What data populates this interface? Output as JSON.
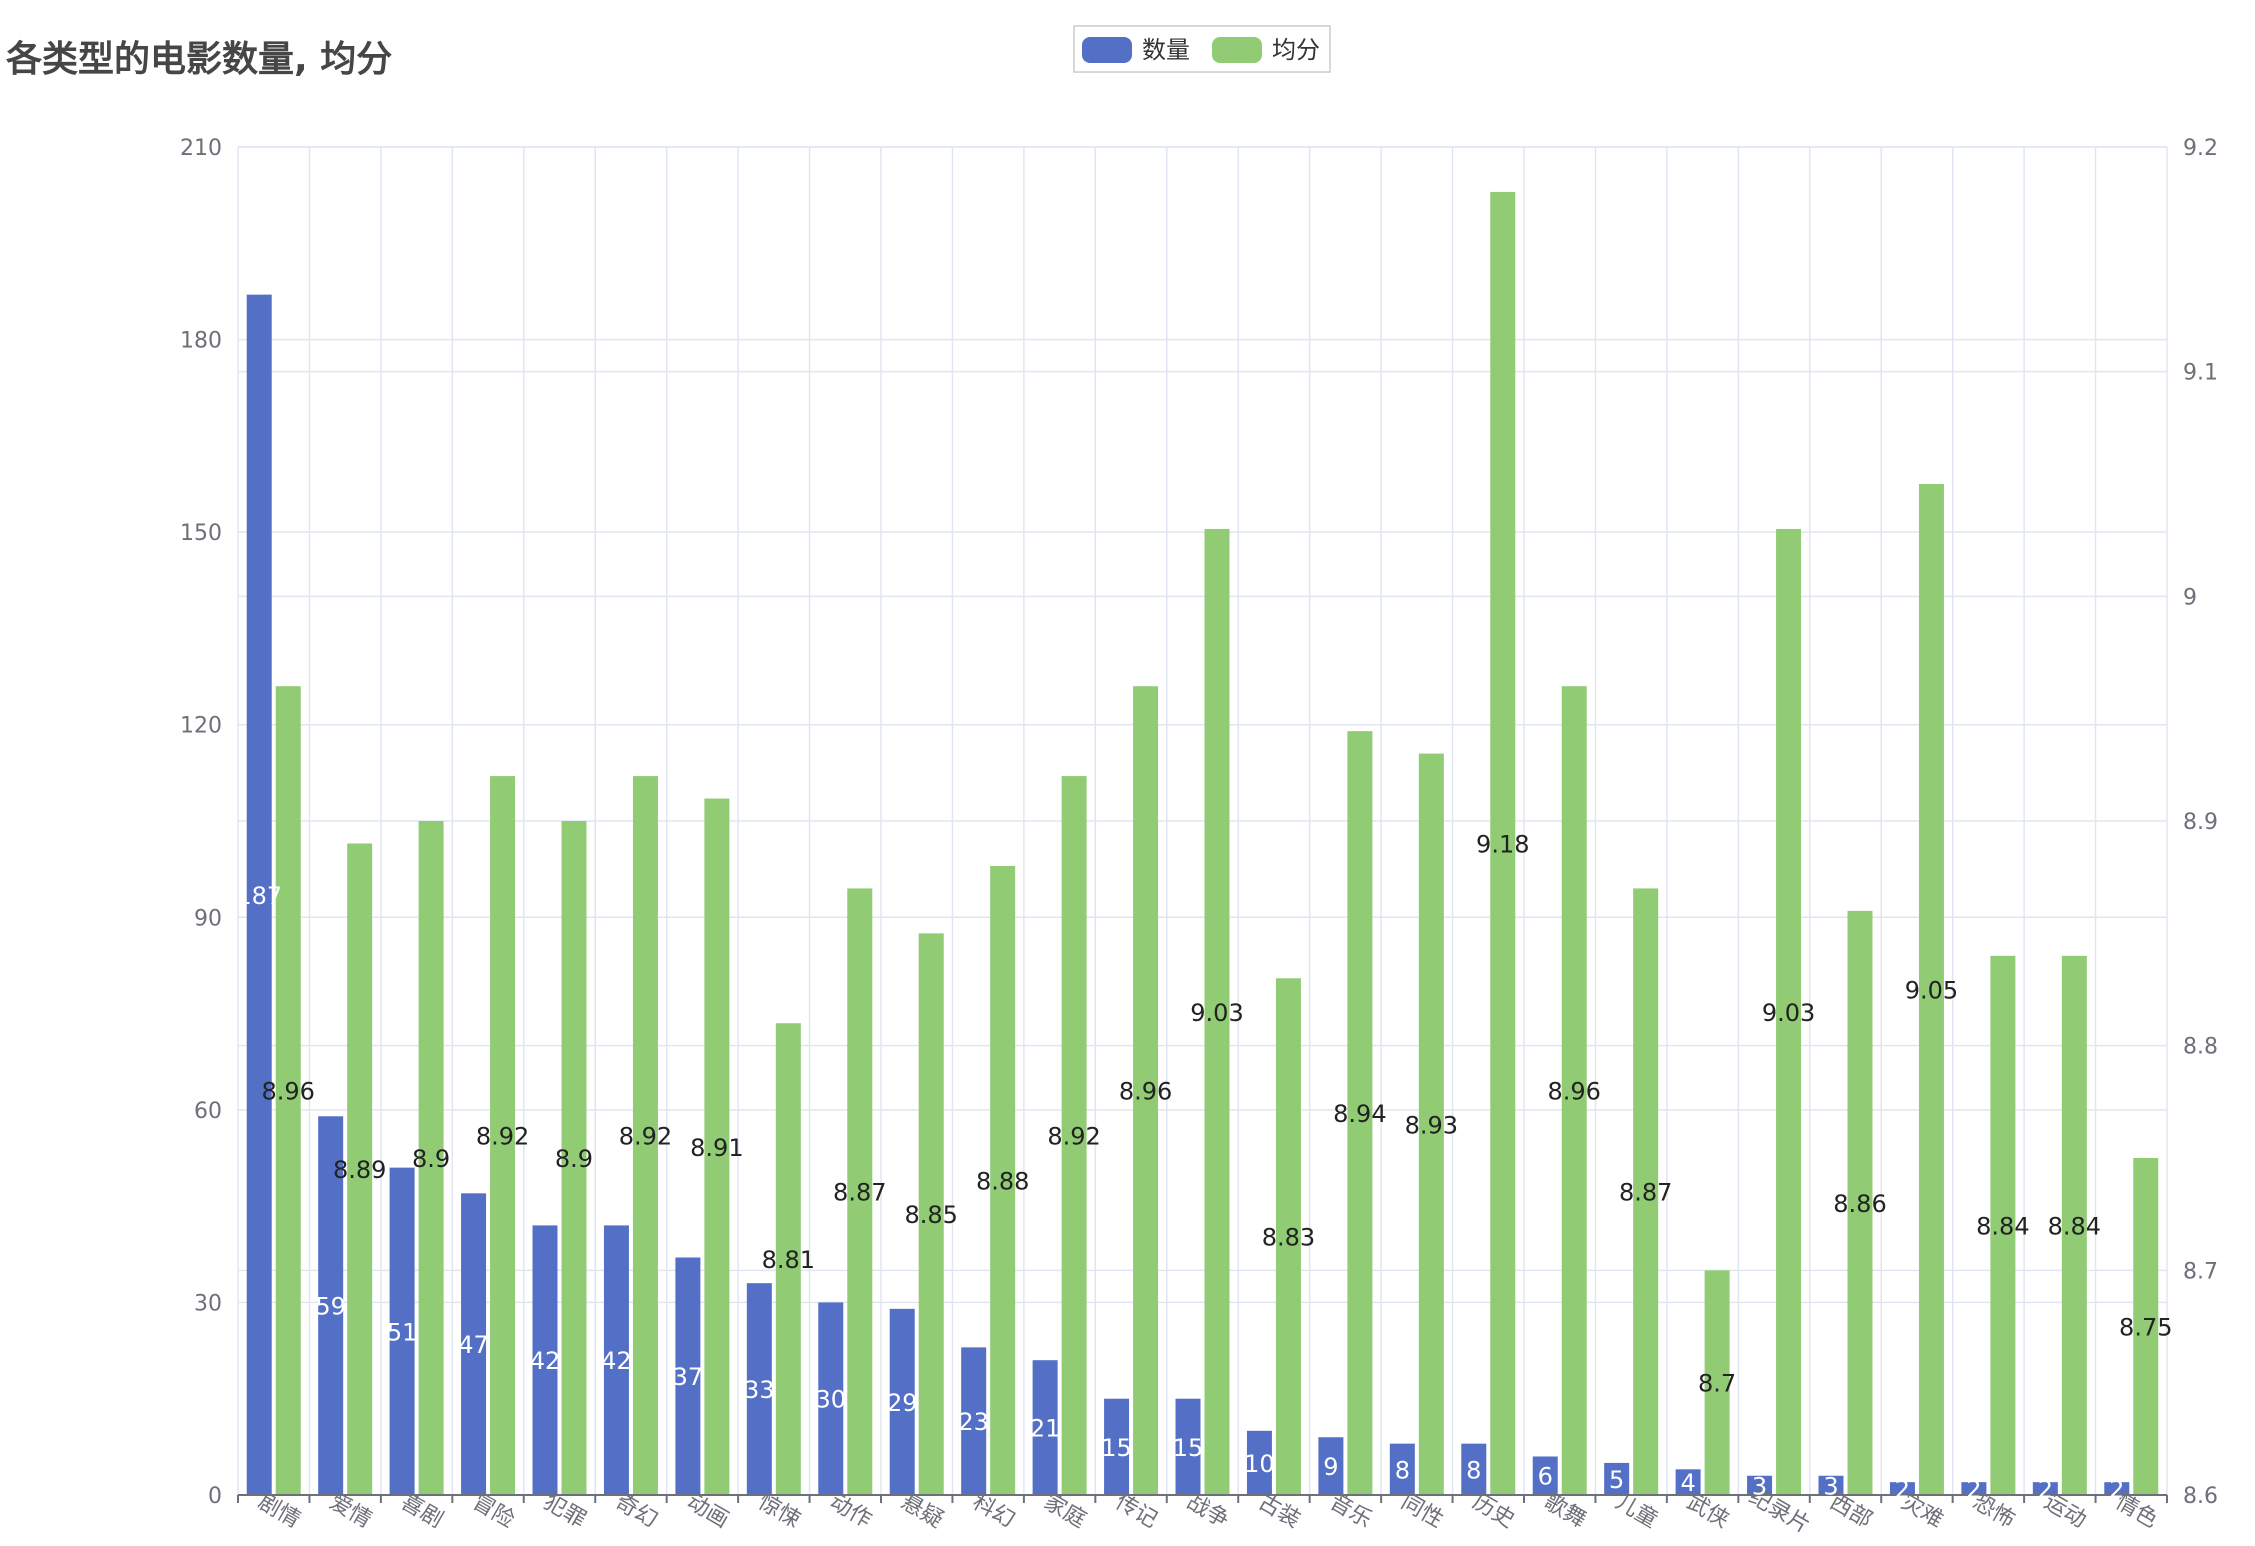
{
  "title": "各类型的电影数量, 均分",
  "legend": [
    {
      "name": "数量",
      "color": "#5470c6"
    },
    {
      "name": "均分",
      "color": "#91cc75"
    }
  ],
  "chart_data": {
    "type": "bar",
    "title": "各类型的电影数量, 均分",
    "categories": [
      "剧情",
      "爱情",
      "喜剧",
      "冒险",
      "犯罪",
      "奇幻",
      "动画",
      "惊悚",
      "动作",
      "悬疑",
      "科幻",
      "家庭",
      "传记",
      "战争",
      "古装",
      "音乐",
      "同性",
      "历史",
      "歌舞",
      "儿童",
      "武侠",
      "纪录片",
      "西部",
      "灾难",
      "恐怖",
      "运动",
      "情色"
    ],
    "series": [
      {
        "name": "数量",
        "axis": "left",
        "color": "#5470c6",
        "values": [
          187,
          59,
          51,
          47,
          42,
          42,
          37,
          33,
          30,
          29,
          23,
          21,
          15,
          15,
          10,
          9,
          8,
          8,
          6,
          5,
          4,
          3,
          3,
          2,
          2,
          2,
          2
        ]
      },
      {
        "name": "均分",
        "axis": "right",
        "color": "#91cc75",
        "values": [
          8.96,
          8.89,
          8.9,
          8.92,
          8.9,
          8.92,
          8.91,
          8.81,
          8.87,
          8.85,
          8.88,
          8.92,
          8.96,
          9.03,
          8.83,
          8.94,
          8.93,
          9.18,
          8.96,
          8.87,
          8.7,
          9.03,
          8.86,
          9.05,
          8.84,
          8.84,
          8.75
        ]
      }
    ],
    "y_left": {
      "min": 0,
      "max": 210,
      "ticks": [
        0,
        30,
        60,
        90,
        120,
        150,
        180,
        210
      ]
    },
    "y_right": {
      "min": 8.6,
      "max": 9.2,
      "ticks": [
        "8.6",
        "8.7",
        "8.8",
        "8.9",
        "9",
        "9.1",
        "9.2"
      ]
    },
    "grid": true,
    "legend_position": "top-center"
  }
}
